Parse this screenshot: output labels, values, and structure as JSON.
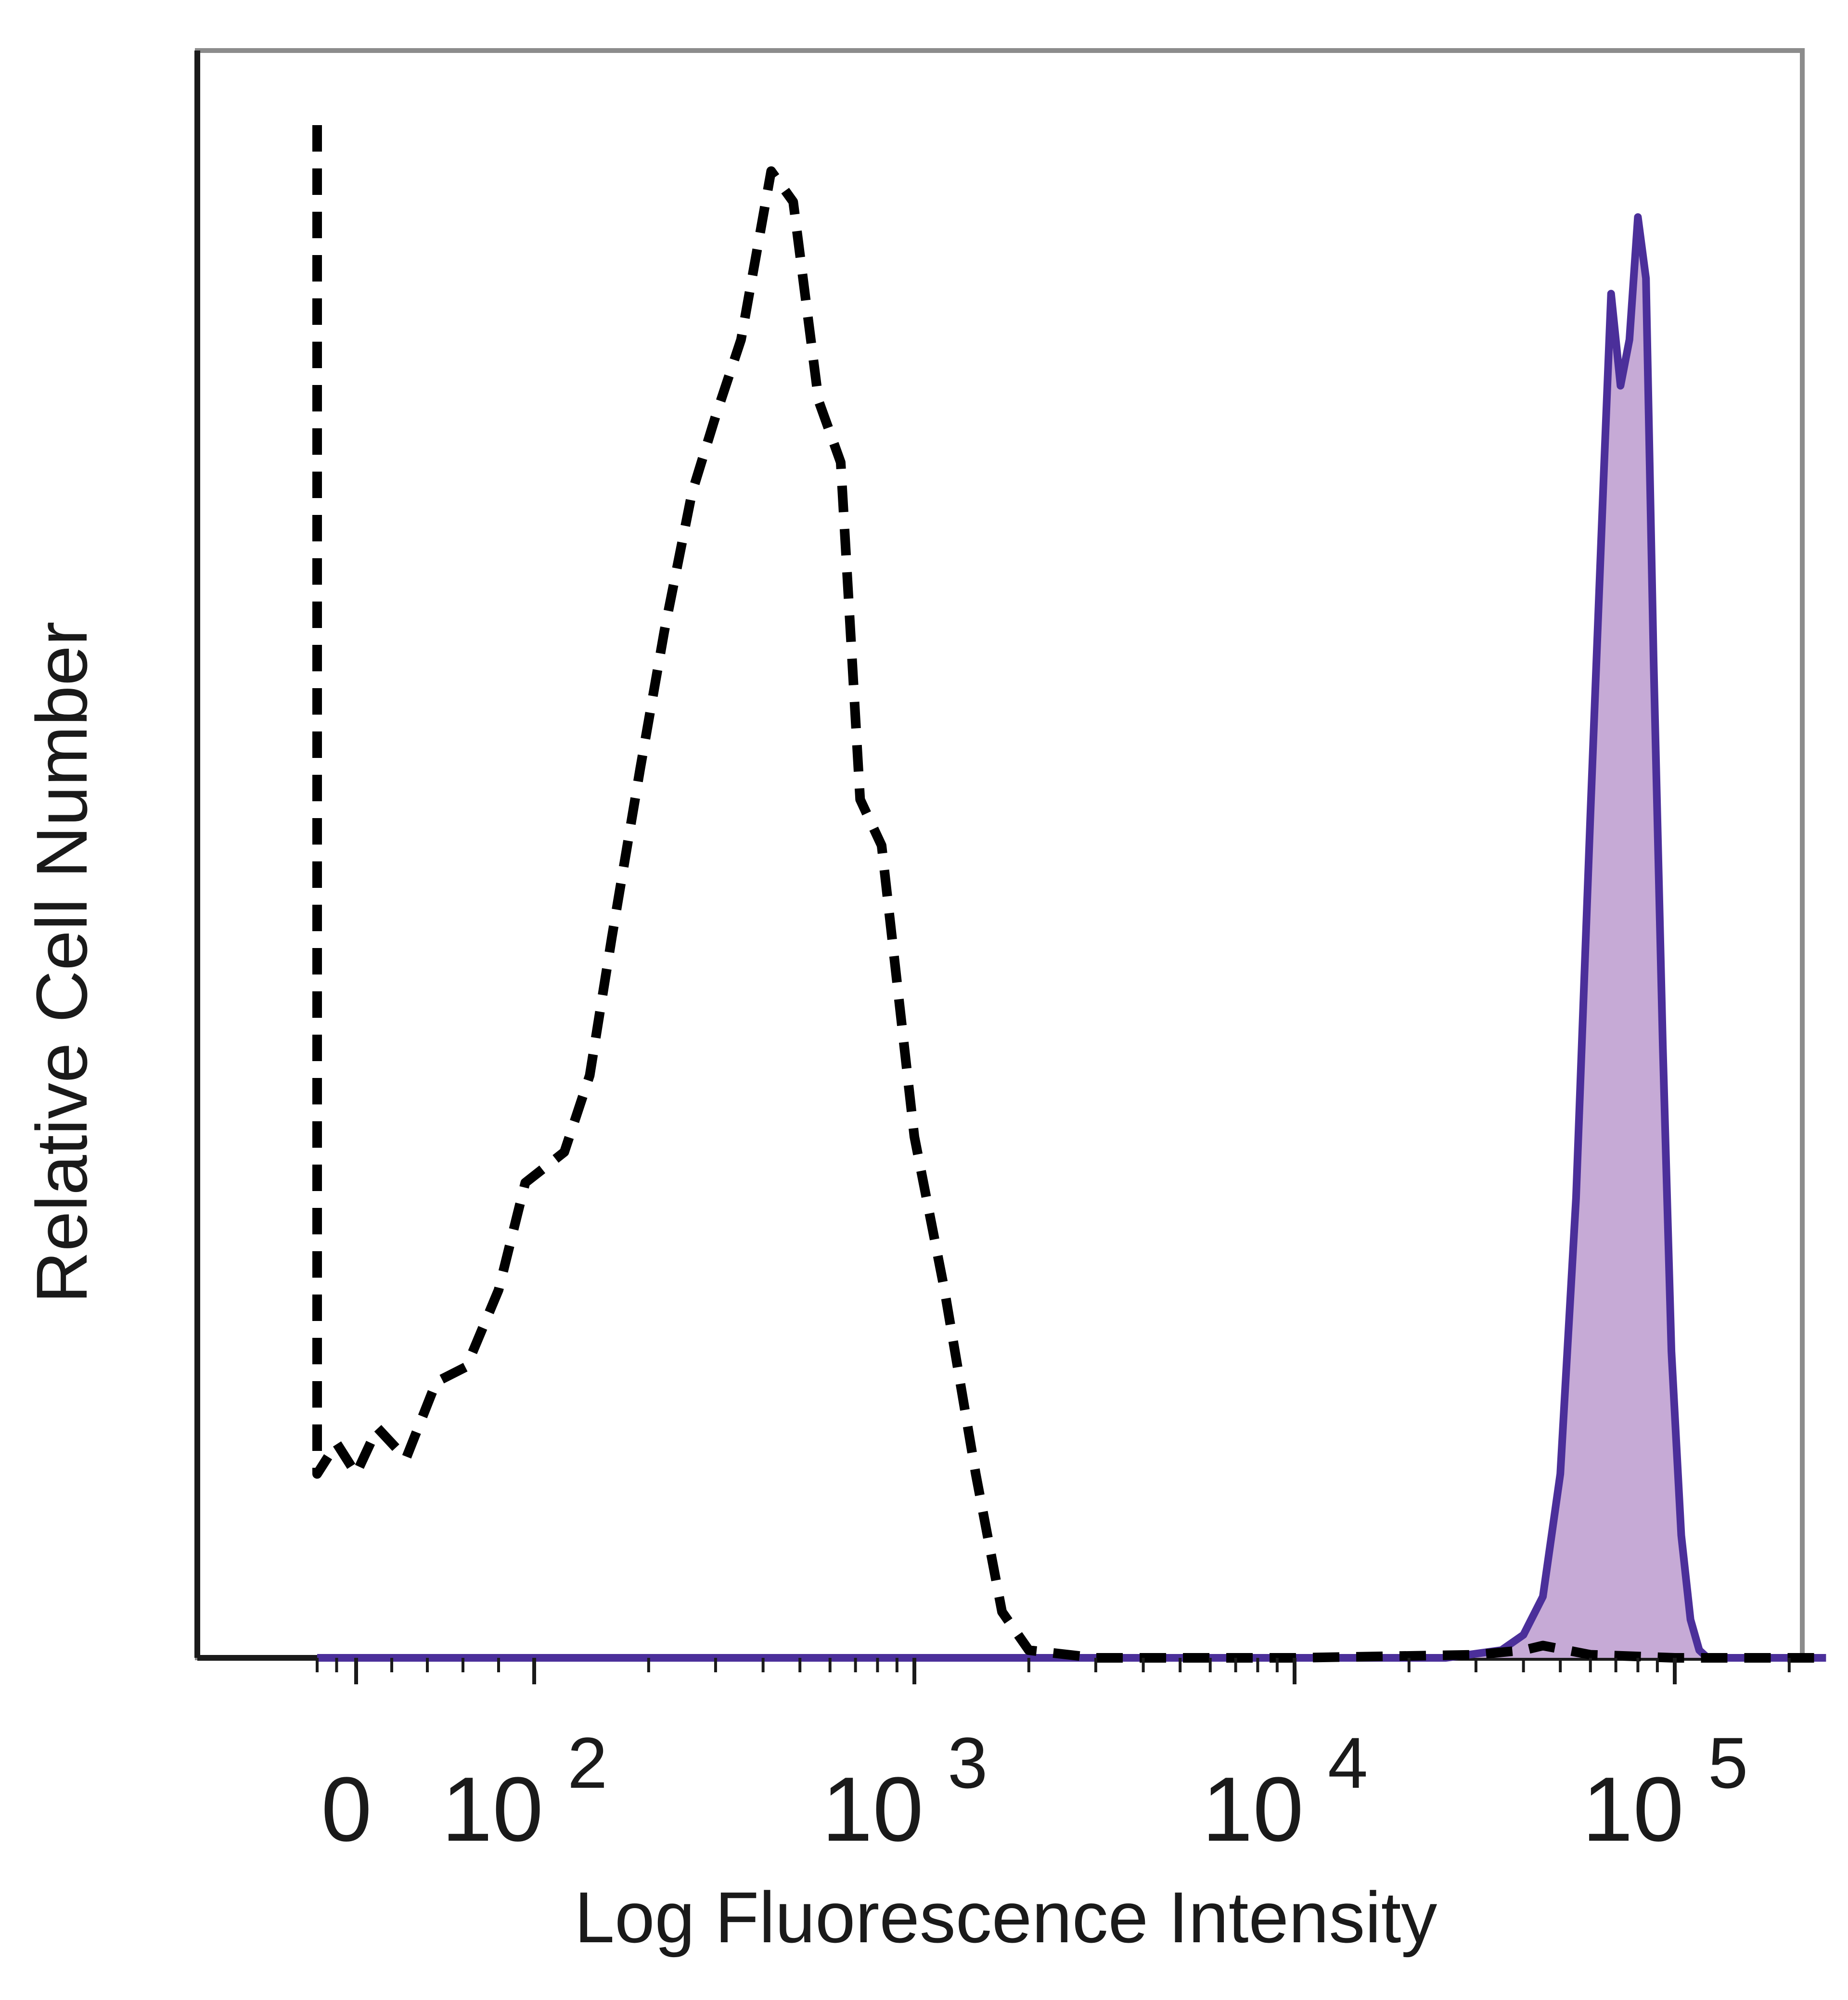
{
  "chart_data": {
    "type": "area",
    "title": "",
    "xlabel": "Log Fluorescence Intensity",
    "ylabel": "Relative Cell Number",
    "x_scale": "biexponential",
    "y_scale": "linear",
    "ylim": [
      0,
      1
    ],
    "grid": false,
    "legend": "none",
    "x_ticks": [
      {
        "value": 0,
        "base": "0",
        "exponent": ""
      },
      {
        "value": 100,
        "base": "10",
        "exponent": "2"
      },
      {
        "value": 1000,
        "base": "10",
        "exponent": "3"
      },
      {
        "value": 10000,
        "base": "10",
        "exponent": "4"
      },
      {
        "value": 100000,
        "base": "10",
        "exponent": "5"
      }
    ],
    "series": [
      {
        "style": "dashed",
        "color": "#000000",
        "fill": "none",
        "points": [
          [
            -30,
            1.0
          ],
          [
            -30,
            0.12
          ],
          [
            -15,
            0.14
          ],
          [
            0,
            0.12
          ],
          [
            12,
            0.15
          ],
          [
            28,
            0.13
          ],
          [
            45,
            0.18
          ],
          [
            62,
            0.19
          ],
          [
            80,
            0.24
          ],
          [
            95,
            0.31
          ],
          [
            120,
            0.33
          ],
          [
            140,
            0.38
          ],
          [
            160,
            0.47
          ],
          [
            190,
            0.58
          ],
          [
            220,
            0.67
          ],
          [
            260,
            0.76
          ],
          [
            300,
            0.81
          ],
          [
            350,
            0.86
          ],
          [
            420,
            0.97
          ],
          [
            480,
            0.95
          ],
          [
            560,
            0.82
          ],
          [
            640,
            0.78
          ],
          [
            720,
            0.56
          ],
          [
            820,
            0.53
          ],
          [
            1000,
            0.34
          ],
          [
            1200,
            0.24
          ],
          [
            1450,
            0.12
          ],
          [
            1700,
            0.03
          ],
          [
            2000,
            0.005
          ],
          [
            3000,
            0.0
          ],
          [
            10000,
            0.0
          ],
          [
            30000,
            0.002
          ],
          [
            40000,
            0.005
          ],
          [
            45000,
            0.008
          ],
          [
            60000,
            0.002
          ],
          [
            100000,
            0.0
          ],
          [
            250000,
            0.0
          ]
        ]
      },
      {
        "style": "solid",
        "color": "#4b2f9a",
        "fill": "#c6aad6",
        "points": [
          [
            -30,
            0.0
          ],
          [
            25000,
            0.0
          ],
          [
            35000,
            0.005
          ],
          [
            40000,
            0.015
          ],
          [
            45000,
            0.04
          ],
          [
            50000,
            0.12
          ],
          [
            55000,
            0.3
          ],
          [
            60000,
            0.55
          ],
          [
            65000,
            0.77
          ],
          [
            68000,
            0.89
          ],
          [
            72000,
            0.83
          ],
          [
            76000,
            0.86
          ],
          [
            80000,
            0.94
          ],
          [
            84000,
            0.9
          ],
          [
            88000,
            0.65
          ],
          [
            93000,
            0.4
          ],
          [
            98000,
            0.2
          ],
          [
            104000,
            0.08
          ],
          [
            110000,
            0.025
          ],
          [
            116000,
            0.005
          ],
          [
            122000,
            0.0
          ],
          [
            250000,
            0.0
          ]
        ]
      }
    ]
  },
  "colors": {
    "axis": "#1a1a1a",
    "frame": "#8c8c8c",
    "negative": "#000000",
    "stained_line": "#4b2f9a",
    "stained_fill": "#c6aad6"
  }
}
